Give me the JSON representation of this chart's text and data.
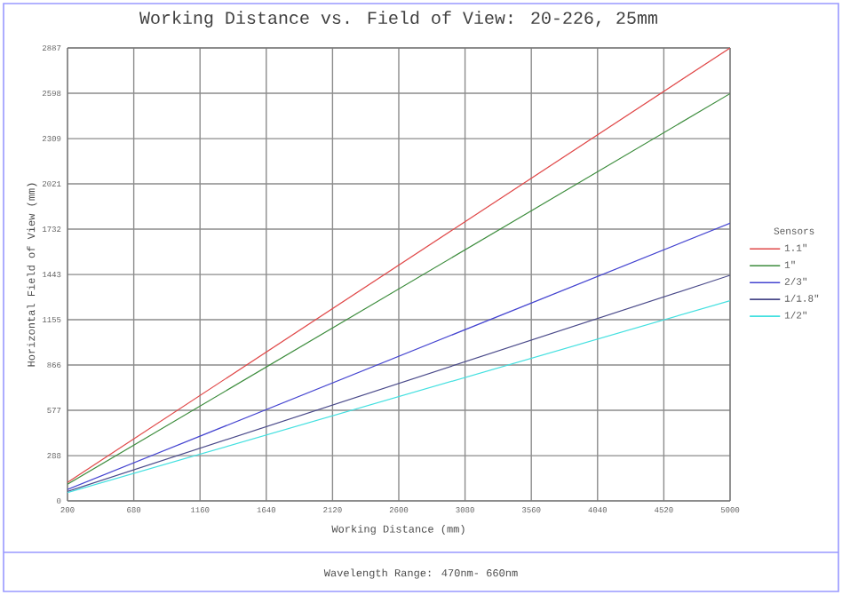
{
  "chart_data": {
    "type": "line",
    "title": "Working Distance vs. Field of View: 20-226, 25mm",
    "xlabel": "Working Distance (mm)",
    "ylabel": "Horizontal Field of View (mm)",
    "legend_title": "Sensors",
    "annotations": [
      "Wavelength Range:  470nm- 660nm"
    ],
    "x": [
      200,
      5000
    ],
    "series": [
      {
        "name": "1.1\"",
        "color": "#e04848",
        "values": [
          118,
          2887
        ]
      },
      {
        "name": "1\"",
        "color": "#3c8c3c",
        "values": [
          106,
          2596
        ]
      },
      {
        "name": "2/3\"",
        "color": "#4444d0",
        "values": [
          73,
          1770
        ]
      },
      {
        "name": "1/1.8\"",
        "color": "#4a4a8a",
        "values": [
          60,
          1438
        ]
      },
      {
        "name": "1/2\"",
        "color": "#44e0e0",
        "values": [
          53,
          1276
        ]
      }
    ],
    "xlim": [
      200,
      5000
    ],
    "ylim": [
      0,
      2887
    ],
    "xticks": [
      200,
      680,
      1160,
      1640,
      2120,
      2600,
      3080,
      3560,
      4040,
      4520,
      5000
    ],
    "yticks": [
      0,
      288,
      577,
      866,
      1155,
      1443,
      1732,
      2021,
      2309,
      2598,
      2887
    ],
    "grid": true,
    "legend": "right",
    "marker": "none",
    "line_style": "solid"
  }
}
